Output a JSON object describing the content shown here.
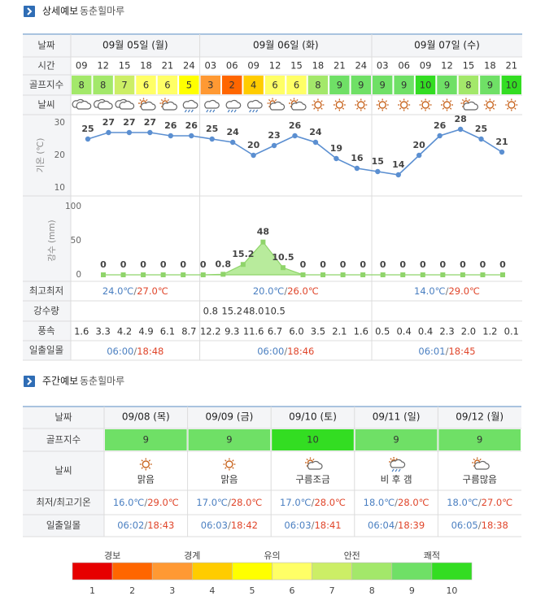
{
  "detail_header": {
    "title": "상세예보",
    "place": "동춘힐마루"
  },
  "separator": "/",
  "detail": {
    "row_labels": {
      "date": "날짜",
      "time": "시간",
      "golf": "골프지수",
      "weather": "날씨",
      "minmax": "최고최저",
      "rain": "강수량",
      "wind": "풍속",
      "sun": "일출일몰"
    },
    "temperature_chart": {
      "type": "line",
      "axis_label": "기온 (℃)",
      "ylim": [
        10,
        30
      ],
      "yticks": [
        10,
        20,
        30
      ],
      "color": "#5b8fd1"
    },
    "precipitation_chart": {
      "type": "area",
      "axis_label": "강수 (mm)",
      "ylim": [
        0,
        100
      ],
      "yticks": [
        0,
        50,
        100
      ],
      "color": "#8fd46a"
    },
    "days": [
      {
        "date": "09월 05일 (월)",
        "times": [
          "09",
          "12",
          "15",
          "18",
          "21",
          "24"
        ],
        "golf_index": [
          8,
          8,
          7,
          6,
          6,
          5
        ],
        "temperature": [
          25,
          27,
          27,
          27,
          26,
          26
        ],
        "precipitation": [
          0,
          0,
          0,
          0,
          0,
          0
        ],
        "rain_amount": [
          null,
          null,
          null,
          null,
          null,
          null
        ],
        "wind": [
          "1.6",
          "3.3",
          "4.2",
          "4.9",
          "6.1",
          "8.7"
        ],
        "min": "24.0℃",
        "max": "27.0℃",
        "sunrise": "06:00",
        "sunset": "18:48"
      },
      {
        "date": "09월 06일 (화)",
        "times": [
          "03",
          "06",
          "09",
          "12",
          "15",
          "18",
          "21",
          "24"
        ],
        "golf_index": [
          3,
          2,
          4,
          6,
          6,
          8,
          9,
          9
        ],
        "temperature": [
          25,
          24,
          20,
          23,
          26,
          24,
          19,
          16
        ],
        "precipitation": [
          0.8,
          15.2,
          48,
          10.5,
          0,
          0,
          0,
          0
        ],
        "rain_amount": [
          "0.8",
          "15.2",
          "48.0",
          "10.5",
          null,
          null,
          null,
          null
        ],
        "wind": [
          "12.2",
          "9.3",
          "11.6",
          "6.7",
          "6.0",
          "3.5",
          "2.1",
          "1.6"
        ],
        "min": "20.0℃",
        "max": "26.0℃",
        "sunrise": "06:00",
        "sunset": "18:46"
      },
      {
        "date": "09월 07일 (수)",
        "times": [
          "03",
          "06",
          "09",
          "12",
          "15",
          "18",
          "21"
        ],
        "golf_index": [
          9,
          9,
          10,
          9,
          8,
          9,
          10
        ],
        "temperature": [
          15,
          14,
          20,
          26,
          28,
          25,
          21
        ],
        "precipitation": [
          0,
          0,
          0,
          0,
          0,
          0,
          0
        ],
        "rain_amount": [
          null,
          null,
          null,
          null,
          null,
          null,
          null
        ],
        "wind": [
          "0.5",
          "0.4",
          "0.4",
          "2.3",
          "2.0",
          "1.2",
          "0.1"
        ],
        "min": "14.0℃",
        "max": "29.0℃",
        "sunrise": "06:01",
        "sunset": "18:45"
      }
    ]
  },
  "weekly_header": {
    "title": "주간예보",
    "place": "동춘힐마루"
  },
  "weekly": {
    "row_labels": {
      "date": "날짜",
      "golf": "골프지수",
      "weather": "날씨",
      "minmax": "최저/최고기온",
      "sun": "일출일몰"
    },
    "days": [
      {
        "date": "09/08 (목)",
        "golf_index": 9,
        "weather": "맑음",
        "min": "16.0℃",
        "max": "29.0℃",
        "sunrise": "06:02",
        "sunset": "18:43"
      },
      {
        "date": "09/09 (금)",
        "golf_index": 9,
        "weather": "맑음",
        "min": "17.0℃",
        "max": "28.0℃",
        "sunrise": "06:03",
        "sunset": "18:42"
      },
      {
        "date": "09/10 (토)",
        "golf_index": 10,
        "weather": "구름조금",
        "min": "17.0℃",
        "max": "28.0℃",
        "sunrise": "06:03",
        "sunset": "18:41"
      },
      {
        "date": "09/11 (일)",
        "golf_index": 9,
        "weather": "비 후 갬",
        "min": "18.0℃",
        "max": "28.0℃",
        "sunrise": "06:04",
        "sunset": "18:39"
      },
      {
        "date": "09/12 (월)",
        "golf_index": 9,
        "weather": "구름많음",
        "min": "18.0℃",
        "max": "27.0℃",
        "sunrise": "06:05",
        "sunset": "18:38"
      }
    ]
  },
  "legend": {
    "labels": [
      "경보",
      "경계",
      "유의",
      "안전",
      "쾌적"
    ],
    "scale": [
      1,
      2,
      3,
      4,
      5,
      6,
      7,
      8,
      9,
      10
    ]
  },
  "index_colors": [
    "#e60000",
    "#ff6600",
    "#ff9933",
    "#ffcc00",
    "#ffff00",
    "#ffff66",
    "#ccee66",
    "#a3e86a",
    "#6fe066",
    "#33dd22"
  ]
}
